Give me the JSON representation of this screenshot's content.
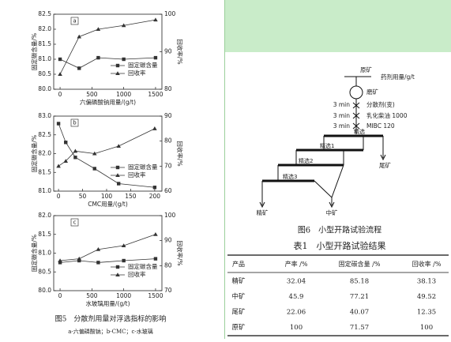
{
  "chart_data": [
    {
      "type": "line",
      "panel": "a",
      "xlabel": "六偏磷酸钠用量/(g/t)",
      "ylabel": "固定碳含量/%",
      "y2label": "回收率/%",
      "x": [
        0,
        300,
        600,
        1000,
        1500
      ],
      "xlim": [
        -100,
        1600
      ],
      "xticks": [
        0,
        500,
        1000,
        1500
      ],
      "ylim": [
        80,
        82.5
      ],
      "yticks": [
        {
          "value": 80,
          "label": "80.0"
        },
        {
          "value": 80.5,
          "label": "80.5"
        },
        {
          "value": 81,
          "label": "81.0"
        },
        {
          "value": 81.5,
          "label": "81.5"
        },
        {
          "value": 82,
          "label": "82.0"
        },
        {
          "value": 82.5,
          "label": "82.5"
        }
      ],
      "y2lim": [
        80,
        100
      ],
      "y2ticks": [
        80,
        90,
        100
      ],
      "series": [
        {
          "name": "固定碳含量",
          "color": "#333333",
          "marker": "square",
          "values": [
            81.0,
            80.7,
            81.05,
            81.0,
            81.05
          ]
        },
        {
          "name": "回收率",
          "color": "#333333",
          "marker": "triangle",
          "axis": "y2",
          "values": [
            84,
            94,
            96,
            97,
            98.5
          ]
        }
      ]
    },
    {
      "type": "line",
      "panel": "b",
      "xlabel": "CMC用量/(g/t)",
      "ylabel": "固定碳含量/%",
      "y2label": "回收率/%",
      "x": [
        0,
        15,
        35,
        75,
        125,
        200
      ],
      "xlim": [
        -10,
        215
      ],
      "xticks": [
        0,
        50,
        100,
        150,
        200
      ],
      "ylim": [
        81,
        83
      ],
      "yticks": [
        {
          "value": 81,
          "label": "81.0"
        },
        {
          "value": 81.5,
          "label": "81.5"
        },
        {
          "value": 82,
          "label": "82.0"
        },
        {
          "value": 82.5,
          "label": "82.5"
        },
        {
          "value": 83,
          "label": "83.0"
        }
      ],
      "y2lim": [
        60,
        90
      ],
      "y2ticks": [
        60,
        70,
        80,
        90
      ],
      "series": [
        {
          "name": "固定碳含量",
          "color": "#333333",
          "marker": "square",
          "values": [
            82.8,
            82.3,
            81.9,
            81.6,
            81.2,
            81.1
          ]
        },
        {
          "name": "回收率",
          "color": "#333333",
          "marker": "triangle",
          "axis": "y2",
          "values": [
            70,
            72,
            76,
            75,
            78,
            85
          ]
        }
      ]
    },
    {
      "type": "line",
      "panel": "c",
      "xlabel": "水玻璃用量/(g/t)",
      "ylabel": "固定碳含量/%",
      "y2label": "回收率/%",
      "x": [
        0,
        300,
        600,
        1000,
        1500
      ],
      "xlim": [
        -100,
        1600
      ],
      "xticks": [
        0,
        500,
        1000,
        1500
      ],
      "ylim": [
        80,
        82
      ],
      "yticks": [
        {
          "value": 80,
          "label": "80.0"
        },
        {
          "value": 80.5,
          "label": "80.5"
        },
        {
          "value": 81,
          "label": "81.0"
        },
        {
          "value": 81.5,
          "label": "81.5"
        },
        {
          "value": 82,
          "label": "82.0"
        }
      ],
      "y2lim": [
        70,
        100
      ],
      "y2ticks": [
        70,
        80,
        90,
        100
      ],
      "series": [
        {
          "name": "固定碳含量",
          "color": "#333333",
          "marker": "square",
          "values": [
            80.75,
            80.8,
            80.75,
            80.8,
            80.85
          ]
        },
        {
          "name": "回收率",
          "color": "#333333",
          "marker": "triangle",
          "axis": "y2",
          "values": [
            82,
            82.75,
            86.5,
            88,
            92.5
          ]
        }
      ]
    }
  ],
  "figure5": {
    "caption": "图5　分散剂用量对浮选指标的影响",
    "subcaption": "a-六偏磷酸钠；b-CMC；c-水玻璃"
  },
  "flowsheet": {
    "feed": "原矿",
    "reagent_header": "药剂用量/g/t",
    "grinding": "磨矿",
    "steps": [
      {
        "time": "3 min",
        "reagent": "分散剂(变)"
      },
      {
        "time": "3 min",
        "reagent": "乳化柴油 1000"
      },
      {
        "time": "3 min",
        "reagent": "MIBC 120"
      }
    ],
    "cells": [
      "精选",
      "精选1",
      "精选2",
      "精选3"
    ],
    "tailing": "尾矿",
    "concentrate": "精矿",
    "middling": "中矿",
    "caption": "图6　小型开路试验流程"
  },
  "table": {
    "title": "表1　小型开路试验结果",
    "header": [
      "产品",
      "产率 /%",
      "固定碳含量 /%",
      "回收率 /%"
    ],
    "rows": [
      [
        "精矿",
        "32.04",
        "85.18",
        "38.13"
      ],
      [
        "中矿",
        "45.9",
        "77.21",
        "49.52"
      ],
      [
        "尾矿",
        "22.06",
        "40.07",
        "12.35"
      ],
      [
        "原矿",
        "100",
        "71.57",
        "100"
      ]
    ]
  }
}
